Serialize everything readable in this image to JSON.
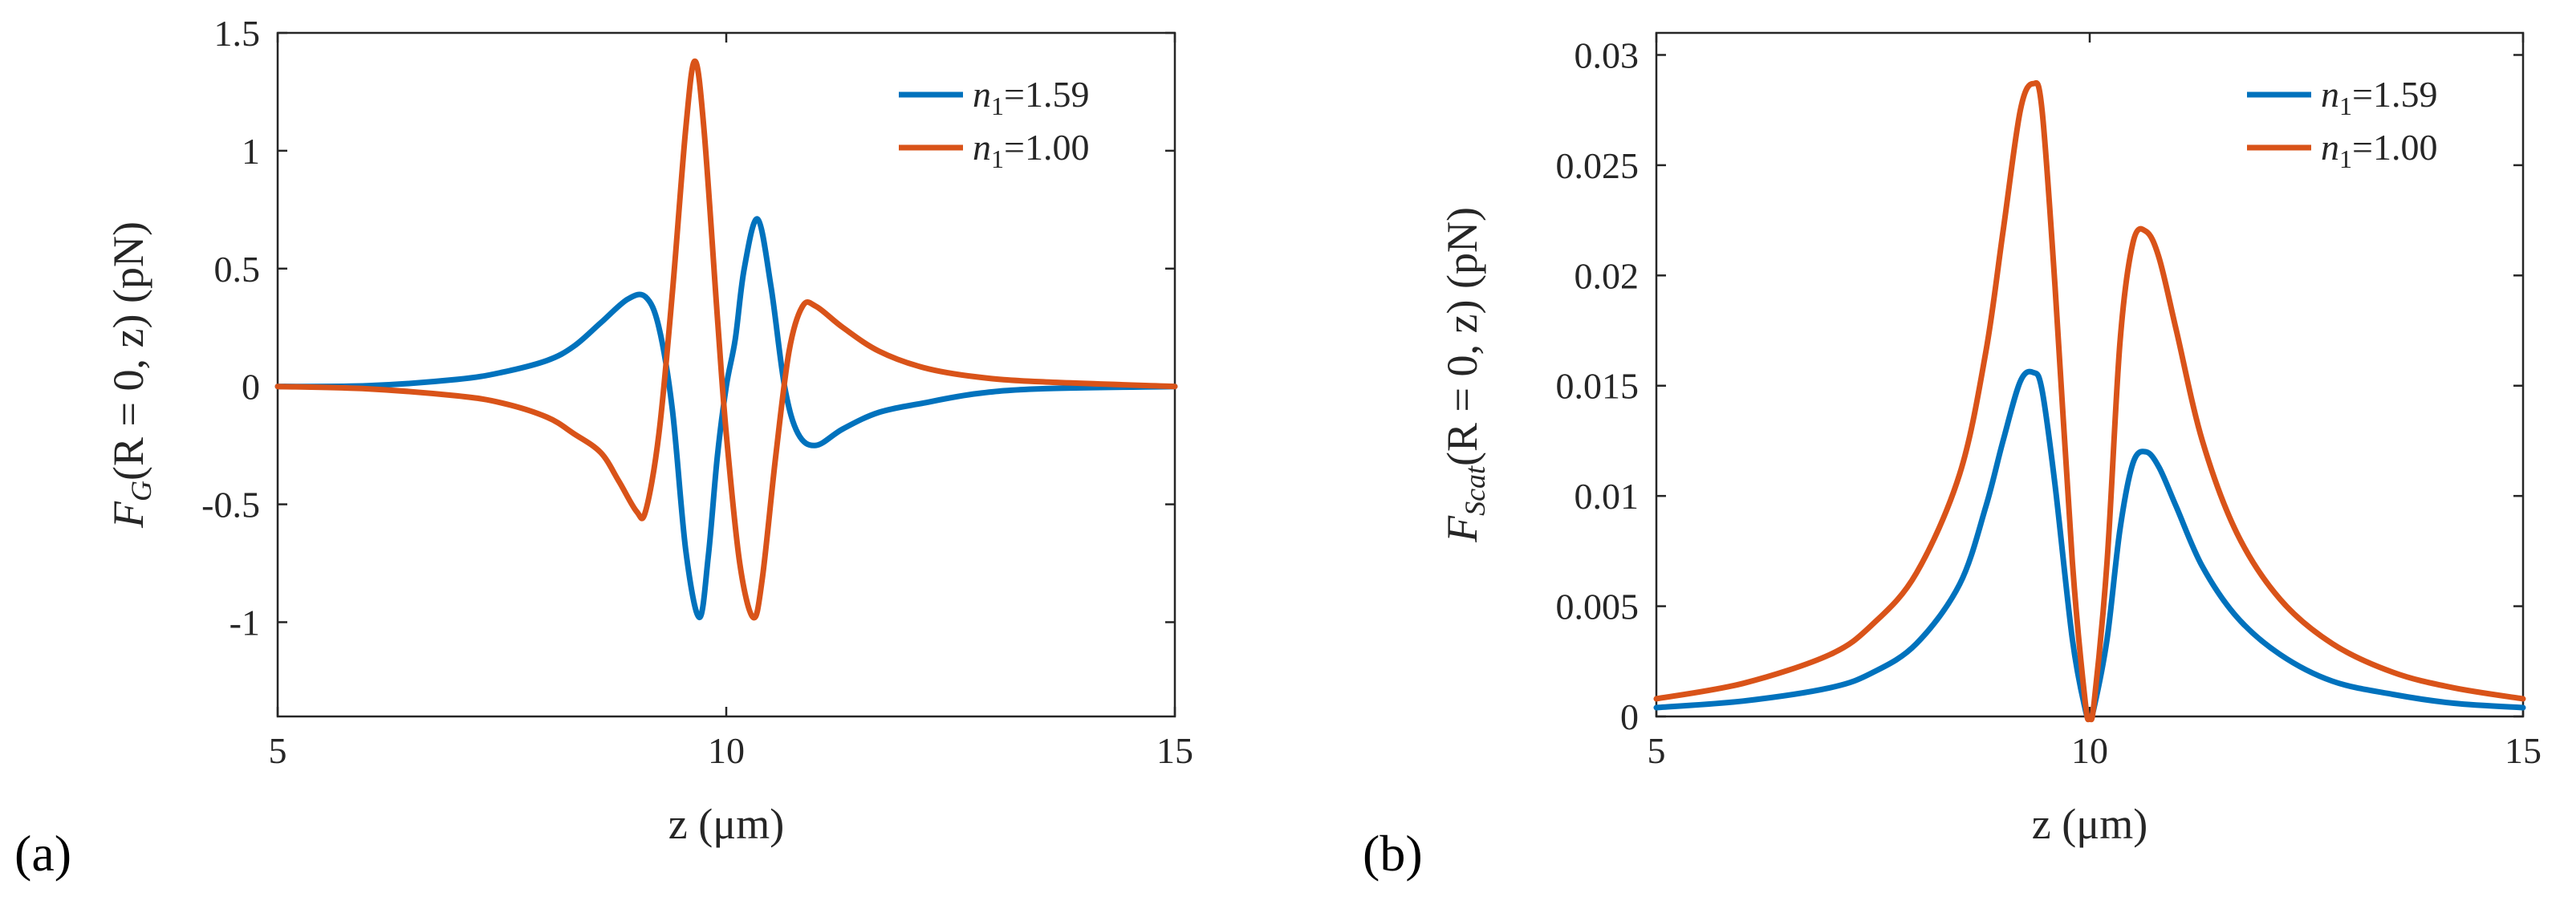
{
  "chart_data": [
    {
      "panel_label": "(a)",
      "type": "line",
      "xlabel": "z (μm)",
      "ylabel": "F_G(R = 0, z) (pN)",
      "ylabel_main": "F",
      "ylabel_sub": "G",
      "ylabel_rest": "(R = 0, z) (pN)",
      "xlim": [
        5,
        15
      ],
      "ylim": [
        -1.4,
        1.5
      ],
      "xticks": [
        5,
        10,
        15
      ],
      "xtick_labels": [
        "5",
        "10",
        "15"
      ],
      "yticks": [
        -1,
        -0.5,
        0,
        0.5,
        1,
        1.5
      ],
      "ytick_labels": [
        "-1",
        "-0.5",
        "0",
        "0.5",
        "1",
        "1.5"
      ],
      "legend_position": "top-right",
      "series": [
        {
          "name": "n1=1.59",
          "legend_symbol": "n",
          "legend_sub": "1",
          "legend_value": "=1.59",
          "color": "#0072BD",
          "x": [
            5.0,
            6.0,
            7.0,
            7.5,
            8.0,
            8.3,
            8.6,
            8.9,
            9.1,
            9.25,
            9.4,
            9.55,
            9.7,
            9.8,
            9.9,
            10.0,
            10.1,
            10.2,
            10.35,
            10.5,
            10.65,
            10.8,
            11.0,
            11.3,
            11.7,
            12.2,
            12.8,
            13.5,
            15.0
          ],
          "y": [
            0.0,
            0.003,
            0.03,
            0.06,
            0.11,
            0.17,
            0.27,
            0.37,
            0.38,
            0.25,
            -0.1,
            -0.7,
            -0.98,
            -0.72,
            -0.3,
            0.0,
            0.2,
            0.5,
            0.71,
            0.42,
            0.0,
            -0.2,
            -0.25,
            -0.18,
            -0.11,
            -0.07,
            -0.03,
            -0.01,
            0.0
          ]
        },
        {
          "name": "n1=1.00",
          "legend_symbol": "n",
          "legend_sub": "1",
          "legend_value": "=1.00",
          "color": "#D95319",
          "x": [
            5.0,
            6.0,
            7.0,
            7.5,
            8.0,
            8.3,
            8.6,
            8.8,
            9.0,
            9.1,
            9.25,
            9.4,
            9.55,
            9.65,
            9.75,
            9.9,
            10.0,
            10.15,
            10.3,
            10.4,
            10.55,
            10.7,
            10.85,
            11.0,
            11.3,
            11.7,
            12.2,
            12.8,
            13.5,
            15.0
          ],
          "y": [
            0.0,
            -0.01,
            -0.04,
            -0.07,
            -0.13,
            -0.2,
            -0.28,
            -0.4,
            -0.53,
            -0.53,
            -0.2,
            0.4,
            1.1,
            1.38,
            1.1,
            0.3,
            -0.2,
            -0.75,
            -0.98,
            -0.82,
            -0.3,
            0.15,
            0.34,
            0.34,
            0.25,
            0.15,
            0.08,
            0.04,
            0.02,
            0.0
          ]
        }
      ]
    },
    {
      "panel_label": "(b)",
      "type": "line",
      "xlabel": "z (μm)",
      "ylabel": "F_Scat(R = 0, z) (pN)",
      "ylabel_main": "F",
      "ylabel_sub": "Scat",
      "ylabel_rest": "(R = 0, z) (pN)",
      "xlim": [
        5,
        15
      ],
      "ylim": [
        0,
        0.031
      ],
      "xticks": [
        5,
        10,
        15
      ],
      "xtick_labels": [
        "5",
        "10",
        "15"
      ],
      "yticks": [
        0,
        0.005,
        0.01,
        0.015,
        0.02,
        0.025,
        0.03
      ],
      "ytick_labels": [
        "0",
        "0.005",
        "0.01",
        "0.015",
        "0.02",
        "0.025",
        "0.03"
      ],
      "legend_position": "top-right",
      "series": [
        {
          "name": "n1=1.59",
          "legend_symbol": "n",
          "legend_sub": "1",
          "legend_value": "=1.59",
          "color": "#0072BD",
          "x": [
            5.0,
            6.0,
            7.0,
            7.5,
            8.0,
            8.5,
            8.8,
            9.0,
            9.2,
            9.35,
            9.45,
            9.6,
            9.8,
            9.95,
            10.0,
            10.05,
            10.2,
            10.35,
            10.5,
            10.65,
            10.8,
            11.0,
            11.3,
            11.7,
            12.2,
            12.8,
            13.5,
            14.2,
            15.0
          ],
          "y": [
            0.0004,
            0.0007,
            0.0013,
            0.002,
            0.0033,
            0.006,
            0.0095,
            0.0125,
            0.0152,
            0.0156,
            0.0148,
            0.0105,
            0.0035,
            0.0003,
            0.0,
            0.0004,
            0.0035,
            0.0085,
            0.0115,
            0.012,
            0.0113,
            0.0095,
            0.0068,
            0.0045,
            0.0028,
            0.0016,
            0.001,
            0.0006,
            0.0004
          ]
        },
        {
          "name": "n1=1.00",
          "legend_symbol": "n",
          "legend_sub": "1",
          "legend_value": "=1.00",
          "color": "#D95319",
          "x": [
            5.0,
            6.0,
            7.0,
            7.5,
            8.0,
            8.5,
            8.8,
            9.0,
            9.2,
            9.35,
            9.45,
            9.6,
            9.8,
            9.95,
            10.0,
            10.05,
            10.2,
            10.35,
            10.5,
            10.65,
            10.8,
            11.0,
            11.3,
            11.7,
            12.2,
            12.8,
            13.5,
            14.2,
            15.0
          ],
          "y": [
            0.0008,
            0.0015,
            0.0028,
            0.0042,
            0.0065,
            0.011,
            0.0165,
            0.022,
            0.0275,
            0.0287,
            0.0275,
            0.0195,
            0.007,
            0.0006,
            0.0,
            0.0006,
            0.007,
            0.017,
            0.0215,
            0.022,
            0.0208,
            0.0175,
            0.0125,
            0.0083,
            0.0053,
            0.0033,
            0.002,
            0.0013,
            0.0008
          ]
        }
      ]
    }
  ]
}
